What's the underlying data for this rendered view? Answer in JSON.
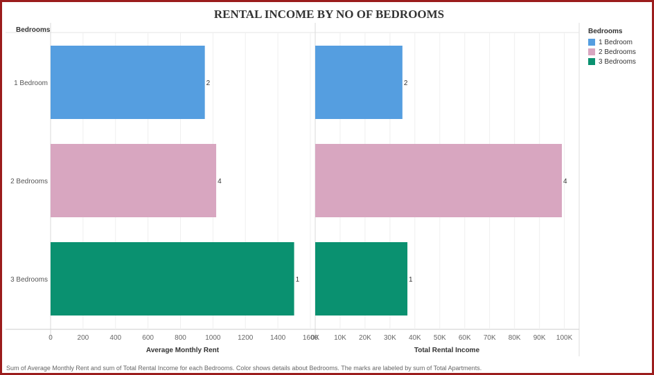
{
  "chart_data": [
    {
      "type": "bar",
      "orientation": "horizontal",
      "title": "RENTAL INCOME BY NO OF BEDROOMS",
      "row_header": "Bedrooms",
      "categories": [
        "1 Bedroom",
        "2 Bedrooms",
        "3 Bedrooms"
      ],
      "xlabel": "Average Monthly Rent",
      "values": [
        950,
        1020,
        1500
      ],
      "xlim": [
        0,
        1600
      ],
      "ticks": [
        0,
        200,
        400,
        600,
        800,
        1000,
        1200,
        1400,
        1600
      ],
      "tick_labels": [
        "0",
        "200",
        "400",
        "600",
        "800",
        "1000",
        "1200",
        "1400",
        "1600"
      ],
      "data_labels": [
        "2",
        "4",
        "1"
      ],
      "grid": true
    },
    {
      "type": "bar",
      "orientation": "horizontal",
      "categories": [
        "1 Bedroom",
        "2 Bedrooms",
        "3 Bedrooms"
      ],
      "xlabel": "Total Rental Income",
      "values": [
        35000,
        99000,
        37000
      ],
      "xlim": [
        0,
        104000
      ],
      "ticks": [
        0,
        10000,
        20000,
        30000,
        40000,
        50000,
        60000,
        70000,
        80000,
        90000,
        100000
      ],
      "tick_labels": [
        "0K",
        "10K",
        "20K",
        "30K",
        "40K",
        "50K",
        "60K",
        "70K",
        "80K",
        "90K",
        "100K"
      ],
      "data_labels": [
        "2",
        "4",
        "1"
      ],
      "grid": true
    }
  ],
  "colors": {
    "1 Bedroom": "#559ee0",
    "2 Bedrooms": "#d8a6c0",
    "3 Bedrooms": "#0a9170",
    "frame": "#9b1c1c"
  },
  "legend": {
    "title": "Bedrooms",
    "placement": "top-right",
    "items": [
      {
        "label": "1 Bedroom",
        "color": "#559ee0"
      },
      {
        "label": "2 Bedrooms",
        "color": "#d8a6c0"
      },
      {
        "label": "3 Bedrooms",
        "color": "#0a9170"
      }
    ]
  },
  "caption": "Sum of Average Monthly Rent and sum of Total Rental Income for each Bedrooms.  Color shows details about Bedrooms.  The marks are labeled by sum of Total Apartments."
}
